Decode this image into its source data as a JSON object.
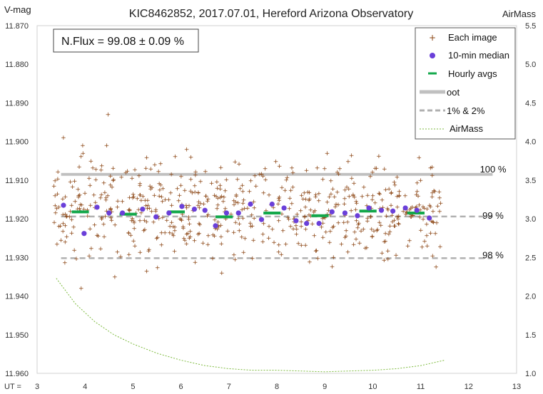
{
  "chart_data": {
    "type": "scatter",
    "title": "KIC8462852, 2017.07.01, Hereford Arizona Observatory",
    "ylabel_left": "V-mag",
    "ylabel_right": "AirMass",
    "xlabel": "UT =",
    "xlim": [
      3,
      13
    ],
    "ylim_left": [
      11.87,
      11.96
    ],
    "ylim_left_inverted": true,
    "ylim_right": [
      1.0,
      5.5
    ],
    "x_ticks": [
      "3",
      "4",
      "5",
      "6",
      "7",
      "8",
      "9",
      "10",
      "11",
      "12",
      "13"
    ],
    "y_ticks_left": [
      "11.870",
      "11.880",
      "11.890",
      "11.900",
      "11.910",
      "11.920",
      "11.930",
      "11.940",
      "11.950",
      "11.960"
    ],
    "y_ticks_right": [
      "5.5",
      "5.0",
      "4.5",
      "4.0",
      "3.5",
      "3.0",
      "2.5",
      "2.0",
      "1.5",
      "1.0"
    ],
    "annotation": "N.Flux = 99.08 ± 0.09 %",
    "grid": false,
    "legend_position": "top-right",
    "legend": [
      "Each image",
      "10-min median",
      "Hourly avgs",
      "oot",
      "1% & 2%",
      "AirMass"
    ],
    "reference_lines": [
      {
        "name": "oot",
        "y": 11.9085,
        "label": "100 %"
      },
      {
        "name": "1% & 2%",
        "y": 11.9194,
        "label": "99 %"
      },
      {
        "name": "1% & 2%",
        "y": 11.9302,
        "label": "98 %"
      }
    ],
    "each_image": {
      "x_range": [
        3.35,
        11.42
      ],
      "count": 620,
      "center": 11.918,
      "spread": 0.0065,
      "outliers": [
        {
          "x": 3.55,
          "y": 11.899
        },
        {
          "x": 3.95,
          "y": 11.901
        },
        {
          "x": 4.48,
          "y": 11.893
        },
        {
          "x": 4.45,
          "y": 11.901
        },
        {
          "x": 6.12,
          "y": 11.902
        },
        {
          "x": 9.05,
          "y": 11.903
        },
        {
          "x": 3.92,
          "y": 11.938
        },
        {
          "x": 6.85,
          "y": 11.934
        },
        {
          "x": 4.62,
          "y": 11.935
        }
      ]
    },
    "ten_min_median": {
      "x": [
        3.55,
        3.98,
        4.25,
        4.5,
        4.78,
        5.2,
        5.48,
        5.75,
        6.02,
        6.28,
        6.5,
        6.72,
        6.95,
        7.2,
        7.45,
        7.68,
        7.9,
        8.15,
        8.4,
        8.62,
        8.88,
        9.15,
        9.42,
        9.68,
        9.92,
        10.18,
        10.42,
        10.68,
        10.92,
        11.18
      ],
      "y": [
        11.9165,
        11.9238,
        11.917,
        11.9185,
        11.9185,
        11.9175,
        11.9195,
        11.9185,
        11.9168,
        11.9175,
        11.9178,
        11.9218,
        11.9185,
        11.9185,
        11.9162,
        11.9202,
        11.9162,
        11.9172,
        11.9205,
        11.9212,
        11.9212,
        11.9182,
        11.9185,
        11.9192,
        11.9172,
        11.9178,
        11.918,
        11.9172,
        11.9178,
        11.9198
      ]
    },
    "hourly_avgs": {
      "x": [
        3.9,
        4.9,
        5.9,
        6.9,
        7.9,
        8.9,
        9.9,
        10.9
      ],
      "y": [
        11.9182,
        11.9188,
        11.9182,
        11.9195,
        11.9185,
        11.9192,
        11.918,
        11.9185
      ]
    },
    "airmass": {
      "x": [
        3.4,
        3.8,
        4.2,
        4.6,
        5.0,
        5.5,
        6.0,
        6.5,
        7.0,
        7.5,
        8.0,
        8.5,
        9.0,
        9.5,
        10.0,
        10.5,
        11.0,
        11.5
      ],
      "y": [
        2.23,
        1.9,
        1.67,
        1.5,
        1.38,
        1.26,
        1.17,
        1.1,
        1.06,
        1.04,
        1.04,
        1.03,
        1.02,
        1.03,
        1.04,
        1.06,
        1.1,
        1.17
      ]
    },
    "colors": {
      "each_image": "#8b4513",
      "median": "#6a3fd9",
      "hourly": "#13a84b",
      "oot": "#c0c0c0",
      "pct_lines": "#b0b0b0",
      "airmass": "#7cba3c"
    }
  }
}
